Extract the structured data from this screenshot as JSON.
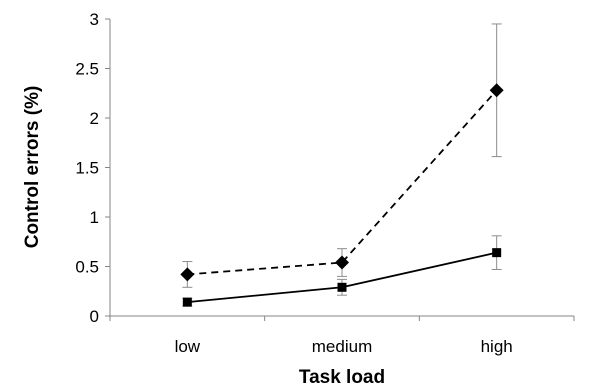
{
  "chart_data": {
    "type": "line",
    "title": "",
    "xlabel": "Task load",
    "ylabel": "Control errors (%)",
    "categories": [
      "low",
      "medium",
      "high"
    ],
    "ylim": [
      0,
      3
    ],
    "yticks": [
      "0",
      "0.5",
      "1",
      "1.5",
      "2",
      "2.5",
      "3"
    ],
    "grid": false,
    "legend": "none",
    "series": [
      {
        "values": [
          0.42,
          0.54,
          2.28
        ],
        "errors": [
          0.13,
          0.14,
          0.67
        ],
        "marker": "diamond",
        "line": "dashed",
        "color": "#000000"
      },
      {
        "values": [
          0.14,
          0.29,
          0.64
        ],
        "errors": [
          0.04,
          0.08,
          0.17
        ],
        "marker": "square",
        "line": "solid",
        "color": "#000000"
      }
    ]
  }
}
